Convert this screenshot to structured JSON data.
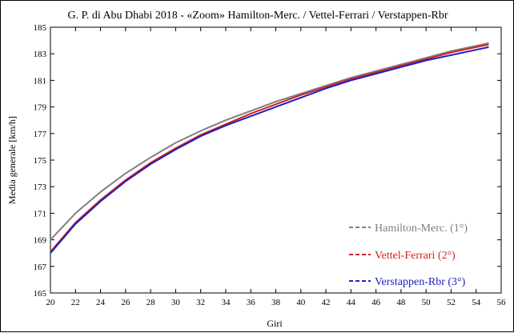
{
  "chart_data": {
    "type": "line",
    "title": "G. P. di Abu Dhabi 2018 - «Zoom» Hamilton-Merc. / Vettel-Ferrari / Verstappen-Rbr",
    "xlabel": "Giri",
    "ylabel": "Media generale  [km/h]",
    "xlim": [
      20,
      56
    ],
    "ylim": [
      165,
      185
    ],
    "xticks": [
      20,
      22,
      24,
      26,
      28,
      30,
      32,
      34,
      36,
      38,
      40,
      42,
      44,
      46,
      48,
      50,
      52,
      54,
      56
    ],
    "yticks": [
      165,
      167,
      169,
      171,
      173,
      175,
      177,
      179,
      181,
      183,
      185
    ],
    "grid": false,
    "legend_position": "bottom-right",
    "x": [
      20,
      22,
      24,
      26,
      28,
      30,
      32,
      34,
      36,
      38,
      40,
      42,
      44,
      46,
      48,
      50,
      52,
      54,
      55
    ],
    "series": [
      {
        "name": "Hamilton-Merc. (1°)",
        "color": "#808080",
        "values": [
          169.0,
          171.0,
          172.6,
          174.0,
          175.2,
          176.3,
          177.2,
          178.0,
          178.7,
          179.4,
          180.0,
          180.6,
          181.2,
          181.7,
          182.2,
          182.7,
          183.2,
          183.6,
          183.8
        ]
      },
      {
        "name": "Vettel-Ferrari     (2°)",
        "color": "#d42020",
        "values": [
          168.1,
          170.3,
          172.0,
          173.5,
          174.8,
          175.9,
          176.9,
          177.7,
          178.5,
          179.2,
          179.9,
          180.5,
          181.1,
          181.6,
          182.1,
          182.6,
          183.1,
          183.5,
          183.7
        ]
      },
      {
        "name": "Verstappen-Rbr (3°)",
        "color": "#2020c0",
        "values": [
          168.0,
          170.2,
          171.9,
          173.4,
          174.7,
          175.8,
          176.8,
          177.6,
          178.3,
          179.0,
          179.7,
          180.4,
          181.0,
          181.5,
          182.0,
          182.5,
          182.9,
          183.3,
          183.5
        ]
      }
    ]
  }
}
